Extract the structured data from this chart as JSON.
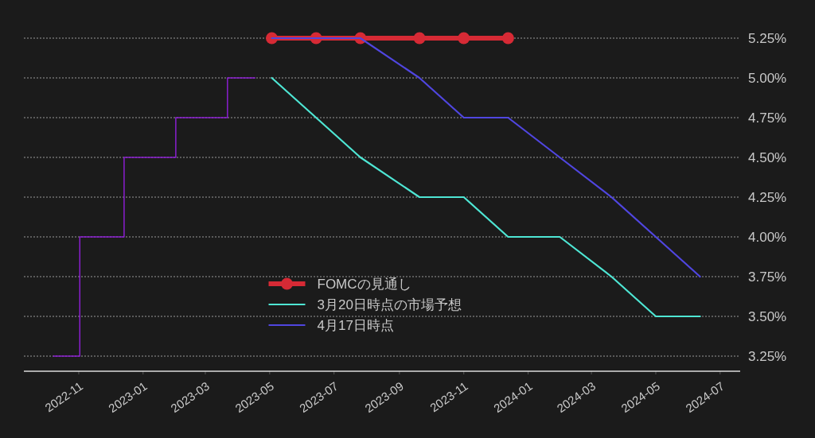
{
  "chart_data": {
    "type": "line",
    "xlim": [
      "2022-09-10",
      "2024-07-20"
    ],
    "ylim": [
      3.155,
      5.25
    ],
    "xticks": [
      "2022-11",
      "2023-01",
      "2023-03",
      "2023-05",
      "2023-07",
      "2023-09",
      "2023-11",
      "2024-01",
      "2024-03",
      "2024-05",
      "2024-07"
    ],
    "yticks": [
      {
        "value": 3.25,
        "label": "3.25%"
      },
      {
        "value": 3.5,
        "label": "3.50%"
      },
      {
        "value": 3.75,
        "label": "3.75%"
      },
      {
        "value": 4.0,
        "label": "4.00%"
      },
      {
        "value": 4.25,
        "label": "4.25%"
      },
      {
        "value": 4.5,
        "label": "4.50%"
      },
      {
        "value": 4.75,
        "label": "4.75%"
      },
      {
        "value": 5.0,
        "label": "5.00%"
      },
      {
        "value": 5.25,
        "label": "5.25%"
      }
    ],
    "grid": "y",
    "legend": "bottom",
    "series": [
      {
        "type": "step",
        "color": "#8a1fd0",
        "x": [
          "2022-10-08",
          "2022-11-02",
          "2022-12-14",
          "2023-02-01",
          "2023-03-22",
          "2023-04-17"
        ],
        "values": [
          3.25,
          4.0,
          4.5,
          4.75,
          5.0,
          5.0
        ]
      },
      {
        "name": "FOMCの見通し",
        "type": "line",
        "color": "#d62a35",
        "marker": "circle",
        "x": [
          "2023-05-03",
          "2023-06-14",
          "2023-07-26",
          "2023-09-20",
          "2023-11-01",
          "2023-12-13"
        ],
        "values": [
          5.25,
          5.25,
          5.25,
          5.25,
          5.25,
          5.25
        ]
      },
      {
        "name": "3月20日時点の市場予想",
        "type": "line",
        "color": "#4ee6d4",
        "x": [
          "2023-05-03",
          "2023-07-26",
          "2023-09-20",
          "2023-11-01",
          "2023-12-13",
          "2024-01-31",
          "2024-03-20",
          "2024-05-01",
          "2024-06-12"
        ],
        "values": [
          5.0,
          4.5,
          4.25,
          4.25,
          4.0,
          4.0,
          3.75,
          3.5,
          3.5
        ]
      },
      {
        "name": "4月17日時点",
        "type": "line",
        "color": "#5046e0",
        "x": [
          "2023-05-03",
          "2023-07-26",
          "2023-09-20",
          "2023-11-01",
          "2023-12-13",
          "2024-01-31",
          "2024-03-20",
          "2024-05-01",
          "2024-06-12"
        ],
        "values": [
          5.25,
          5.25,
          5.0,
          4.75,
          4.75,
          4.5,
          4.25,
          4.0,
          3.75
        ]
      }
    ]
  }
}
